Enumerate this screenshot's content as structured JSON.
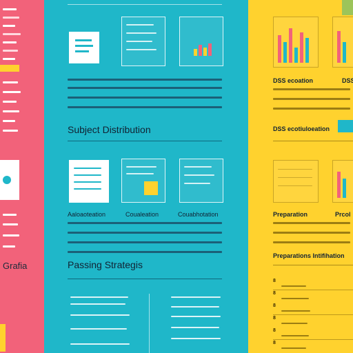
{
  "pink_panel": {
    "label": "Grafia"
  },
  "cyan_panel": {
    "heading_1": "Subject Distribution",
    "heading_2": "Passing Strategis",
    "col_labels": [
      "Aaloaoteation",
      "Coualeation",
      "Couabhotation"
    ]
  },
  "yellow_panel": {
    "label_1": "DSS ecoation",
    "label_1b": "DSS",
    "label_2": "DSS ecotiuloeation",
    "label_3": "Preparation",
    "label_3b": "Prcol",
    "label_4": "Preparations Intifihation"
  },
  "colors": {
    "pink": "#f2627a",
    "cyan": "#1fb7c9",
    "yellow": "#ffd22e",
    "dark": "#123344"
  }
}
